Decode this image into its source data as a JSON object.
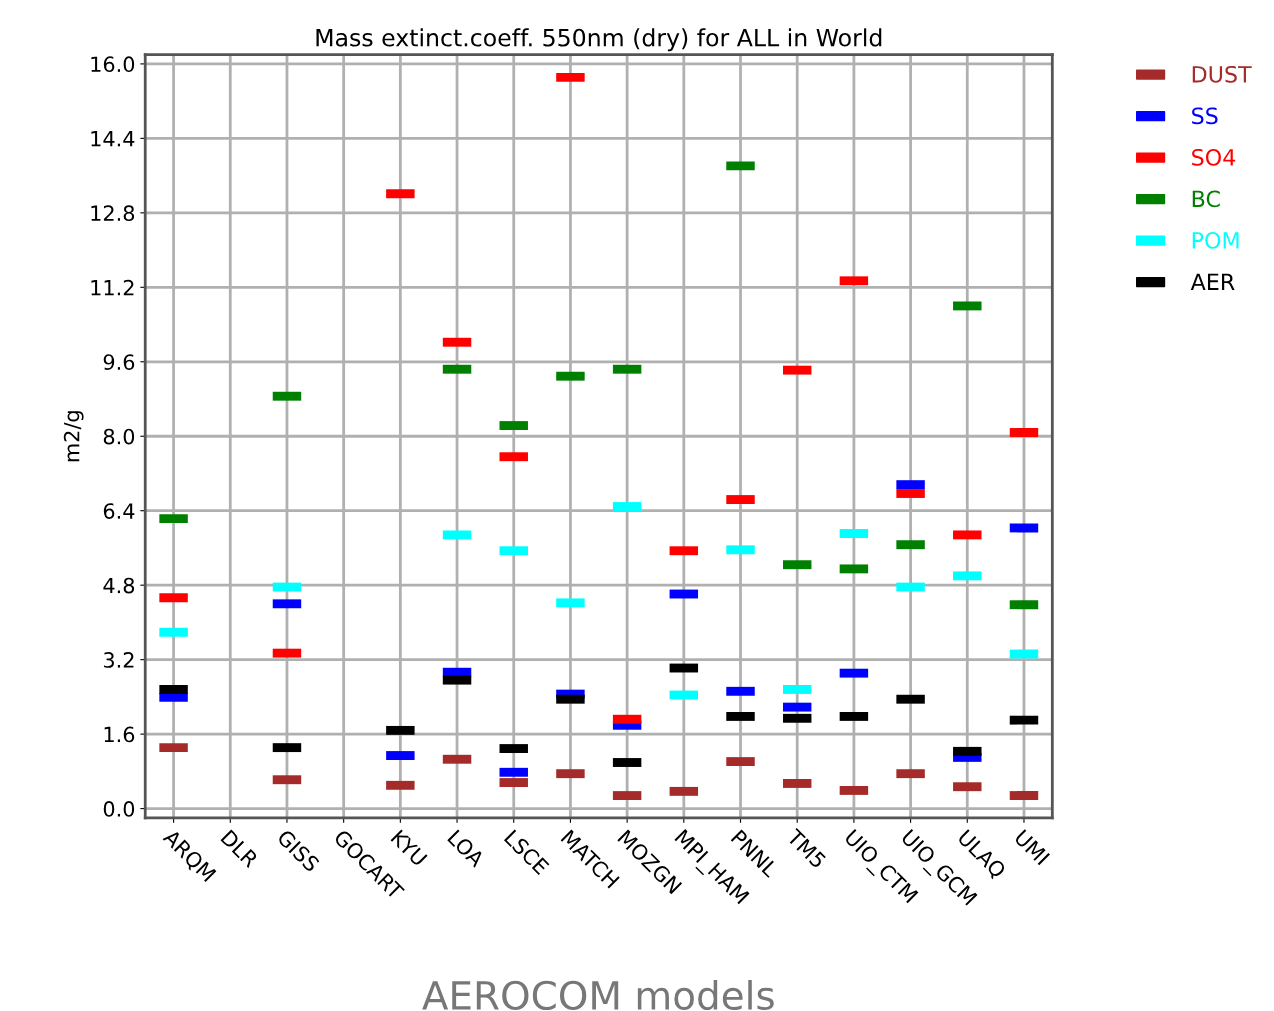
{
  "chart_data": {
    "type": "scatter",
    "title": "Mass extinct.coeff. 550nm (dry) for ALL in World",
    "xlabel": "AEROCOM models",
    "ylabel": "m2/g",
    "categories": [
      "ARQM",
      "DLR",
      "GISS",
      "GOCART",
      "KYU",
      "LOA",
      "LSCE",
      "MATCH",
      "MOZGN",
      "MPI_HAM",
      "PNNL",
      "TM5",
      "UIO_CTM",
      "UIO_GCM",
      "ULAQ",
      "UMI"
    ],
    "series": [
      {
        "name": "DUST",
        "color": "#a52a2a",
        "values": [
          1.31,
          null,
          0.62,
          null,
          0.5,
          1.06,
          0.56,
          0.75,
          0.28,
          0.37,
          1.01,
          0.54,
          0.39,
          0.75,
          0.47,
          0.28
        ]
      },
      {
        "name": "SS",
        "color": "#0000ff",
        "values": [
          2.39,
          null,
          4.4,
          null,
          1.14,
          2.93,
          0.78,
          2.46,
          1.79,
          4.61,
          2.52,
          2.18,
          2.91,
          6.96,
          1.1,
          6.03
        ]
      },
      {
        "name": "SO4",
        "color": "#ff0000",
        "values": [
          4.53,
          null,
          3.34,
          null,
          13.21,
          10.02,
          7.56,
          15.71,
          1.92,
          5.54,
          6.64,
          9.42,
          11.34,
          6.77,
          5.88,
          8.08
        ]
      },
      {
        "name": "BC",
        "color": "#008000",
        "values": [
          6.23,
          null,
          8.86,
          null,
          null,
          9.44,
          8.23,
          9.29,
          9.44,
          null,
          13.81,
          5.24,
          5.15,
          5.67,
          10.8,
          4.38
        ]
      },
      {
        "name": "POM",
        "color": "#00ffff",
        "values": [
          3.79,
          null,
          4.76,
          null,
          null,
          5.88,
          5.54,
          4.42,
          6.49,
          2.44,
          5.56,
          2.56,
          5.91,
          4.76,
          5.0,
          3.32
        ]
      },
      {
        "name": "AER",
        "color": "#000000",
        "values": [
          2.56,
          null,
          1.31,
          null,
          1.68,
          2.76,
          1.29,
          2.35,
          0.99,
          3.02,
          1.98,
          1.94,
          1.98,
          2.35,
          1.23,
          1.9
        ]
      }
    ],
    "ylim": [
      -0.2,
      16.2
    ],
    "yticks": [
      {
        "value": 0,
        "label": "0.0"
      },
      {
        "value": 1.6,
        "label": "1.6"
      },
      {
        "value": 3.2,
        "label": "3.2"
      },
      {
        "value": 4.8,
        "label": "4.8"
      },
      {
        "value": 6.4,
        "label": "6.4"
      },
      {
        "value": 8,
        "label": "8.0"
      },
      {
        "value": 9.6,
        "label": "9.6"
      },
      {
        "value": 11.2,
        "label": "11.2"
      },
      {
        "value": 12.8,
        "label": "12.8"
      },
      {
        "value": 14.4,
        "label": "14.4"
      },
      {
        "value": 16,
        "label": "16.0"
      }
    ],
    "grid": true,
    "legend": "top right",
    "marker": "square"
  }
}
